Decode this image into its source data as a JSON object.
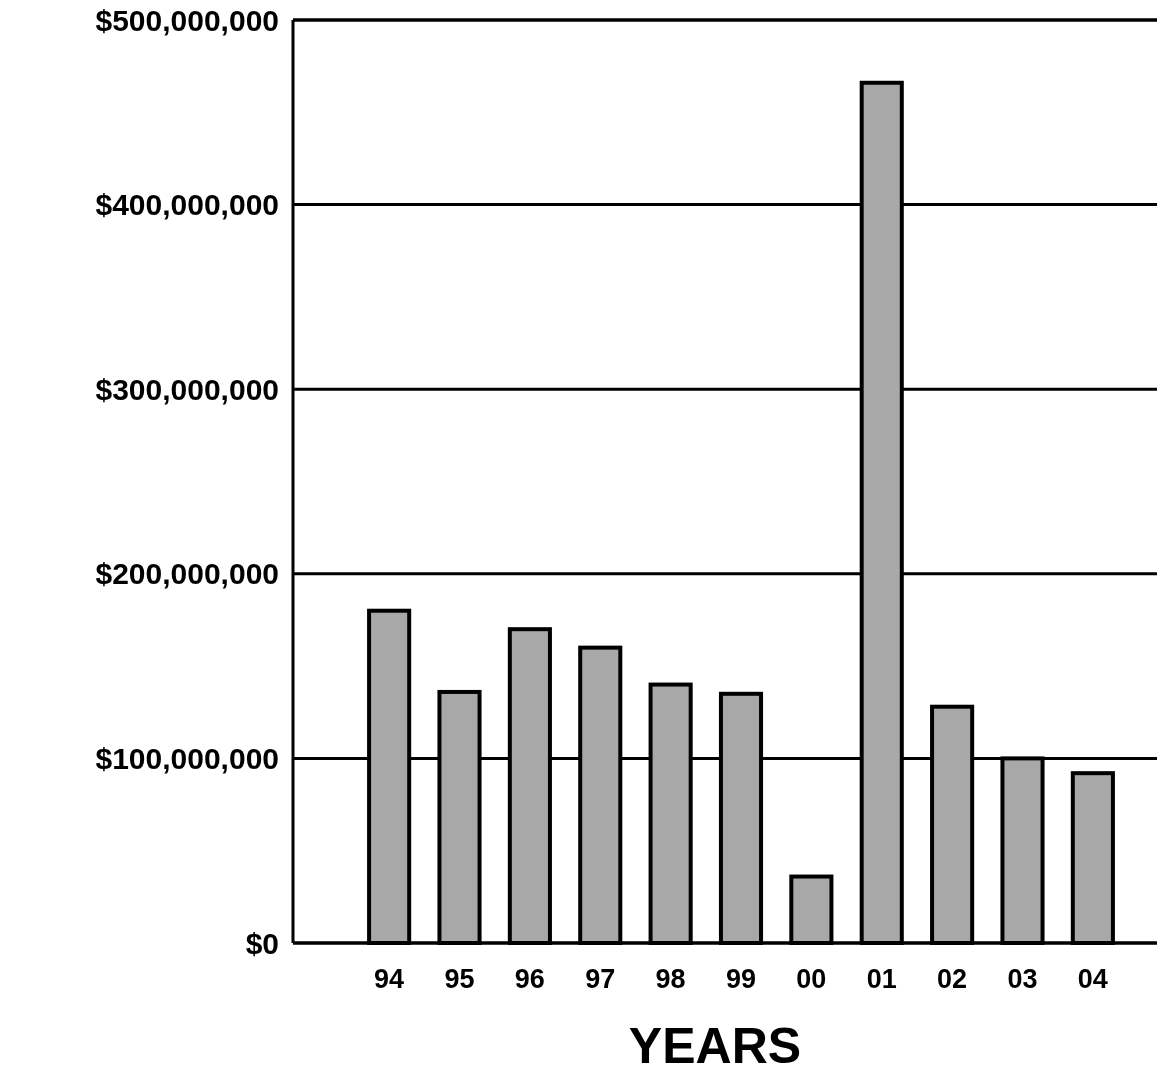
{
  "chart_data": {
    "type": "bar",
    "xlabel": "YEARS",
    "categories": [
      "94",
      "95",
      "96",
      "97",
      "98",
      "99",
      "00",
      "01",
      "02",
      "03",
      "04"
    ],
    "values": [
      180000000,
      136000000,
      170000000,
      160000000,
      140000000,
      135000000,
      36000000,
      466000000,
      128000000,
      100000000,
      92000000
    ],
    "color": "#a8a8a8",
    "ylim": [
      0,
      500000000
    ],
    "yticks": [
      {
        "value": 0,
        "label": "$0"
      },
      {
        "value": 100000000,
        "label": "$100,000,000"
      },
      {
        "value": 200000000,
        "label": "$200,000,000"
      },
      {
        "value": 300000000,
        "label": "$300,000,000"
      },
      {
        "value": 400000000,
        "label": "$400,000,000"
      },
      {
        "value": 500000000,
        "label": "$500,000,000"
      }
    ],
    "grid": "y"
  }
}
